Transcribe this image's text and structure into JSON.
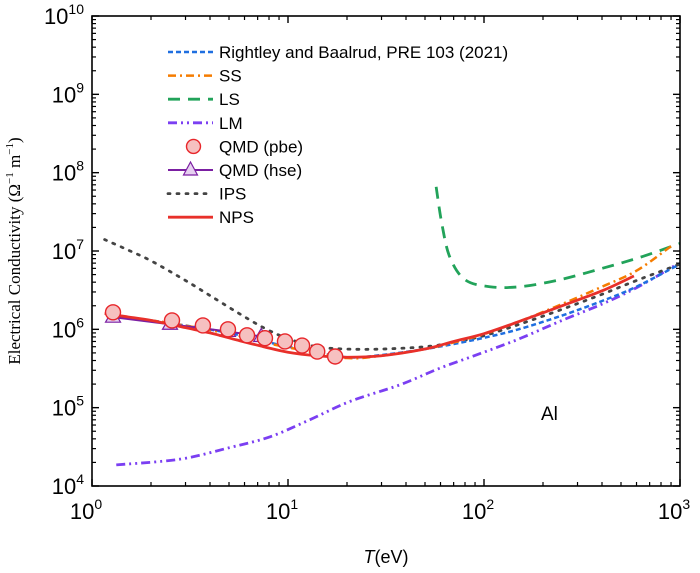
{
  "chart_data": {
    "type": "line",
    "title": "",
    "xlabel": "T(eV)",
    "xlabel_italic_part": "T",
    "xlabel_rest": "(eV)",
    "ylabel": "Electrical Conductivity (Ω⁻¹ m⁻¹)",
    "ylabel_main": "Electrical Conductivity (Ω",
    "ylabel_sup1": "−1",
    "ylabel_mid": " m",
    "ylabel_sup2": "−1",
    "ylabel_end": ")",
    "xscale": "log",
    "yscale": "log",
    "xlim": [
      1,
      1000
    ],
    "ylim": [
      10000,
      10000000000
    ],
    "x_ticks": [
      {
        "base": "10",
        "exp": "0"
      },
      {
        "base": "10",
        "exp": "1"
      },
      {
        "base": "10",
        "exp": "2"
      },
      {
        "base": "10",
        "exp": "3"
      }
    ],
    "y_ticks": [
      {
        "base": "10",
        "exp": "4"
      },
      {
        "base": "10",
        "exp": "5"
      },
      {
        "base": "10",
        "exp": "6"
      },
      {
        "base": "10",
        "exp": "7"
      },
      {
        "base": "10",
        "exp": "8"
      },
      {
        "base": "10",
        "exp": "9"
      },
      {
        "base": "10",
        "exp": "10"
      }
    ],
    "grid": false,
    "legend_position": "top-center",
    "annotation": "Al",
    "series": [
      {
        "name": "Rightley and Baalrud, PRE 103 (2021)",
        "color": "#1f6fe0",
        "style": "dashed",
        "x": [
          1.3,
          2.5,
          5,
          8,
          12,
          20,
          30,
          50,
          70,
          100,
          150,
          250,
          400,
          600,
          1000
        ],
        "y": [
          1500000,
          1200000,
          900000,
          680000,
          550000,
          440000,
          470000,
          560000,
          650000,
          780000,
          1000000,
          1500000,
          2300000,
          3500000,
          6800000
        ]
      },
      {
        "name": "SS",
        "color": "#f57c00",
        "style": "dashdot",
        "x": [
          1.3,
          2.5,
          5,
          8,
          12,
          20,
          30,
          50,
          70,
          100,
          150,
          250,
          400,
          600,
          900
        ],
        "y": [
          1500000,
          1200000,
          880000,
          660000,
          540000,
          430000,
          460000,
          560000,
          680000,
          870000,
          1250000,
          2100000,
          3500000,
          5600000,
          11500000
        ]
      },
      {
        "name": "LS",
        "color": "#22a35a",
        "style": "longdash",
        "x": [
          57,
          61,
          67,
          80,
          107,
          153,
          244,
          391,
          625,
          1000
        ],
        "y": [
          66000000,
          22000000,
          8300000,
          4300000,
          3500000,
          3500000,
          4300000,
          5900000,
          8300000,
          12500000
        ]
      },
      {
        "name": "LM",
        "color": "#7b3ff2",
        "style": "dashdotdot",
        "x": [
          1.33,
          2.81,
          5.06,
          8.1,
          12.9,
          20.7,
          37.3,
          59.7,
          95.5,
          150,
          250,
          400,
          600,
          950
        ],
        "y": [
          18600,
          22000,
          31000,
          42500,
          70000,
          120000,
          196000,
          320000,
          490000,
          750000,
          1300000,
          2100000,
          3400000,
          6600000
        ]
      },
      {
        "name": "QMD (pbe)",
        "color": "#e8262a",
        "fill": "#f6c0c0",
        "style": "marker-circle",
        "x": [
          1.28,
          2.56,
          3.68,
          4.94,
          6.18,
          7.63,
          9.65,
          11.8,
          14.1,
          17.4
        ],
        "y": [
          1650000,
          1300000,
          1120000,
          1000000,
          840000,
          770000,
          700000,
          620000,
          520000,
          450000
        ]
      },
      {
        "name": "QMD (hse)",
        "color": "#7b1fa2",
        "fill": "#e6d0f0",
        "style": "line-marker-triangle",
        "x": [
          1.28,
          2.5,
          4.94,
          7.3
        ],
        "y": [
          1430000,
          1160000,
          940000,
          810000
        ]
      },
      {
        "name": "IPS",
        "color": "#444444",
        "style": "dotted",
        "x": [
          1.16,
          1.5,
          2,
          3,
          4,
          5.5,
          7.5,
          10,
          14,
          20,
          30,
          50,
          70,
          100,
          150,
          250,
          400,
          600,
          1000
        ],
        "y": [
          14000000,
          10500000,
          7500000,
          4200000,
          2700000,
          1650000,
          1050000,
          760000,
          600000,
          560000,
          560000,
          600000,
          680000,
          830000,
          1150000,
          1800000,
          2800000,
          4200000,
          6800000
        ]
      },
      {
        "name": "NPS",
        "color": "#e8302a",
        "style": "solid",
        "x": [
          1.16,
          1.5,
          2,
          3,
          4,
          5.5,
          7.5,
          10,
          14,
          20,
          30,
          50,
          70,
          100,
          150,
          250,
          400,
          582
        ],
        "y": [
          1600000,
          1450000,
          1300000,
          1050000,
          900000,
          730000,
          600000,
          510000,
          460000,
          440000,
          460000,
          560000,
          700000,
          880000,
          1250000,
          2000000,
          3100000,
          4800000
        ]
      }
    ]
  }
}
